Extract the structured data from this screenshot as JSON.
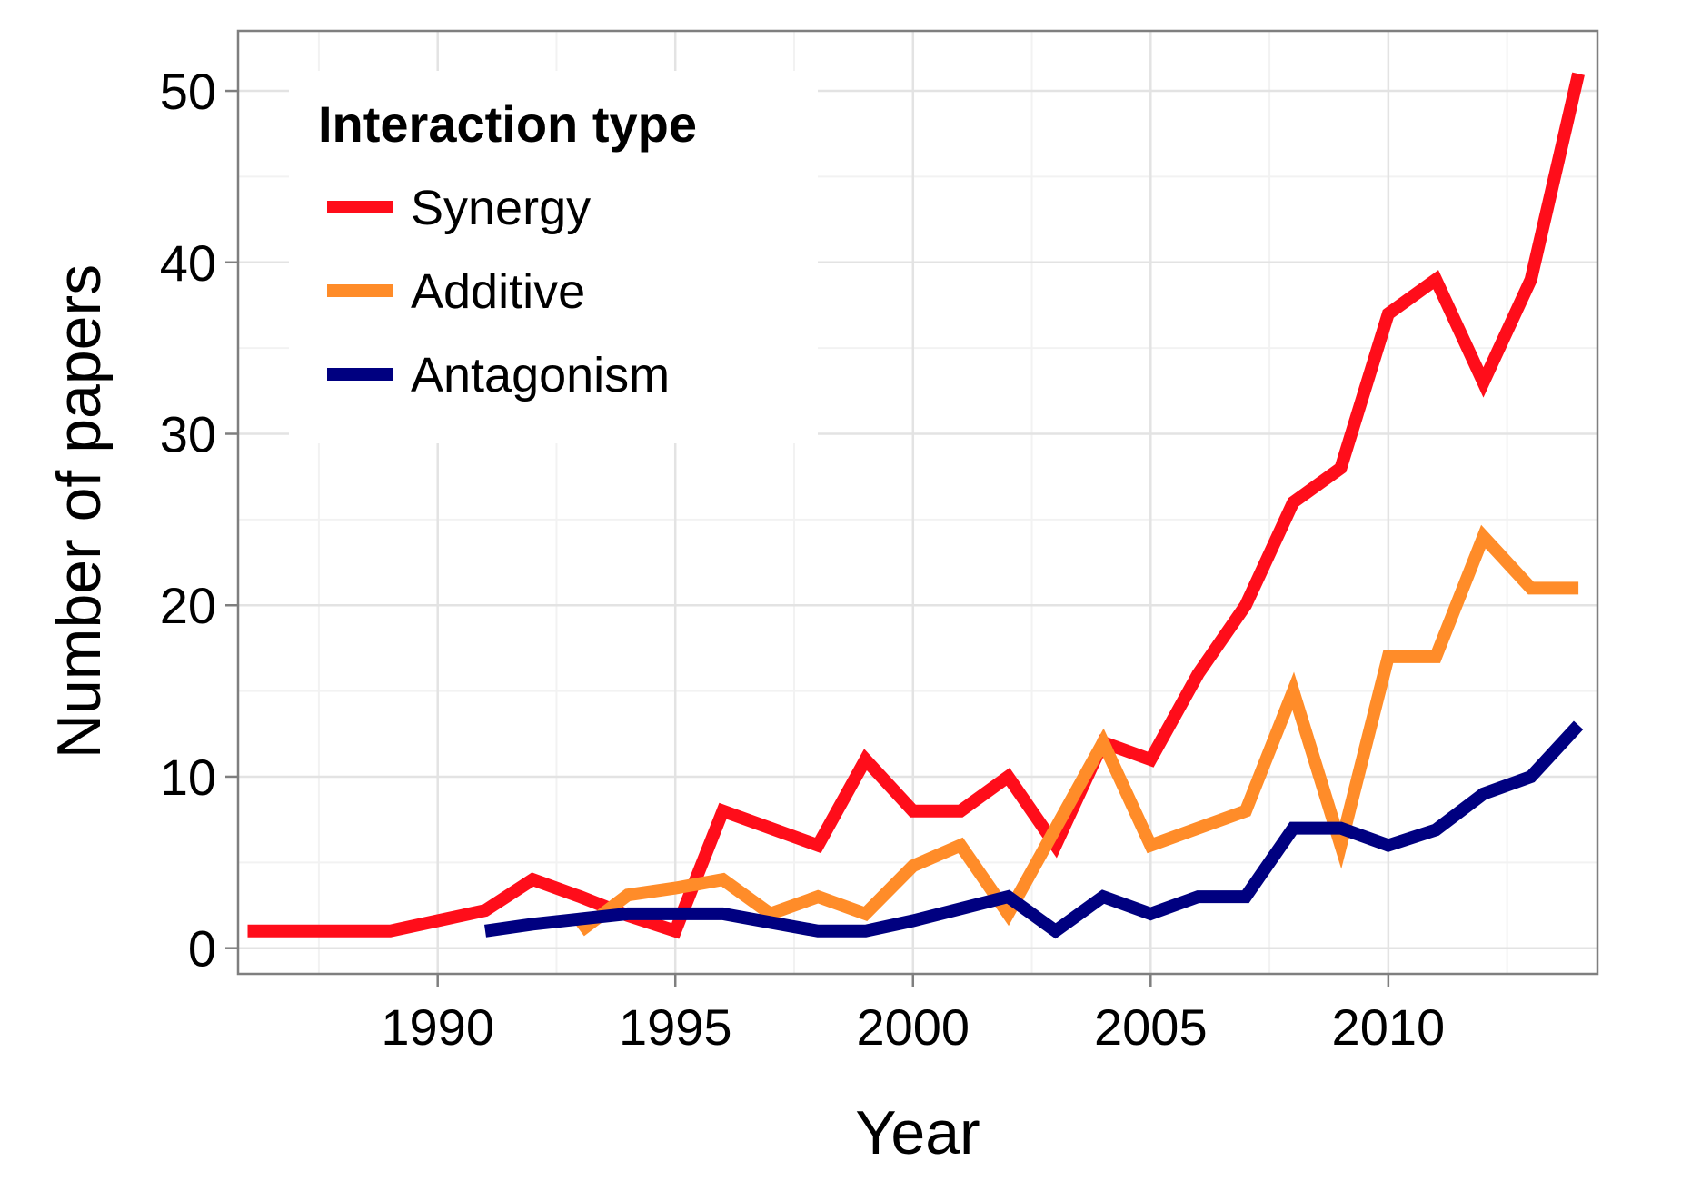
{
  "chart_data": {
    "type": "line",
    "title": "",
    "xlabel": "Year",
    "ylabel": "Number of papers",
    "xlim": [
      1985.8,
      2014.4
    ],
    "ylim": [
      -1.5,
      53.5
    ],
    "xticks": [
      1990,
      1995,
      2000,
      2005,
      2010
    ],
    "yticks": [
      0,
      10,
      20,
      30,
      40,
      50
    ],
    "grid": true,
    "legend": {
      "title": "Interaction type",
      "position": "top-left"
    },
    "series": [
      {
        "name": "Synergy",
        "color": "#ff0d1a",
        "x": [
          1986,
          1987,
          1988,
          1989,
          1990,
          1991,
          1992,
          1993,
          1994,
          1995,
          1996,
          1997,
          1998,
          1999,
          2000,
          2001,
          2002,
          2003,
          2004,
          2005,
          2006,
          2007,
          2008,
          2009,
          2010,
          2011,
          2012,
          2013,
          2014
        ],
        "y": [
          1,
          1,
          1,
          1,
          1.6,
          2.2,
          4,
          3,
          1.9,
          1,
          8,
          7,
          6,
          11,
          8,
          8,
          10,
          6,
          12,
          11,
          16,
          20,
          26,
          28,
          37,
          39,
          33,
          39,
          51
        ]
      },
      {
        "name": "Additive",
        "color": "#ff8c29",
        "x": [
          1993,
          1994,
          1995,
          1996,
          1997,
          1998,
          1999,
          2000,
          2001,
          2002,
          2003,
          2004,
          2005,
          2006,
          2007,
          2008,
          2009,
          2010,
          2011,
          2012,
          2013,
          2014
        ],
        "y": [
          1,
          3.1,
          3.5,
          4,
          2,
          3,
          2,
          4.8,
          6,
          2,
          7,
          12,
          6,
          7,
          8,
          15,
          6,
          17,
          17,
          24,
          21,
          21
        ]
      },
      {
        "name": "Antagonism",
        "color": "#000080",
        "x": [
          1991,
          1992,
          1993,
          1994,
          1995,
          1996,
          1997,
          1998,
          1999,
          2000,
          2001,
          2002,
          2003,
          2004,
          2005,
          2006,
          2007,
          2008,
          2009,
          2010,
          2011,
          2012,
          2013,
          2014
        ],
        "y": [
          1,
          1.4,
          1.7,
          2,
          2,
          2,
          1.5,
          1,
          1,
          1.6,
          2.3,
          3,
          1,
          3,
          2,
          3,
          3,
          7,
          7,
          6,
          6.9,
          9,
          10,
          13
        ]
      }
    ]
  }
}
